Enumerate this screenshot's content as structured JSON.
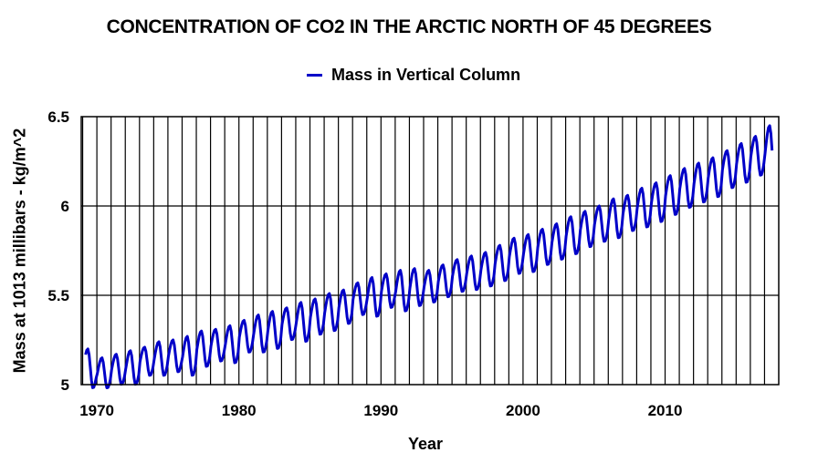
{
  "chart_data": {
    "type": "line",
    "title": "CONCENTRATION OF CO2 IN THE ARCTIC NORTH OF 45 DEGREES",
    "xlabel": "Year",
    "ylabel": "Mass at 1013 millibars - kg/m^2",
    "xlim": [
      1968.9,
      2018.0
    ],
    "ylim": [
      5,
      6.5
    ],
    "x_ticks": [
      1970,
      1980,
      1990,
      2000,
      2010
    ],
    "x_tick_labels": [
      "1970",
      "1980",
      "1990",
      "2000",
      "2010"
    ],
    "y_ticks": [
      5,
      5.5,
      6,
      6.5
    ],
    "y_tick_labels": [
      "5",
      "5.5",
      "6",
      "6.5"
    ],
    "grid": {
      "vertical": "yearly",
      "horizontal": "major"
    },
    "legend": {
      "placement": "top-center",
      "entries": [
        "Mass in Vertical Column"
      ]
    },
    "series": [
      {
        "name": "Mass in Vertical Column",
        "color": "#0000c8",
        "sampling": "monthly, seasonal cycle with spring peak and late-summer trough",
        "start": 1969.2,
        "end": 2017.6,
        "annual": [
          {
            "year": 1969,
            "peak": 5.2,
            "trough": 4.98
          },
          {
            "year": 1970,
            "peak": 5.15,
            "trough": 4.98
          },
          {
            "year": 1971,
            "peak": 5.17,
            "trough": 5.0
          },
          {
            "year": 1972,
            "peak": 5.19,
            "trough": 5.0
          },
          {
            "year": 1973,
            "peak": 5.21,
            "trough": 5.05
          },
          {
            "year": 1974,
            "peak": 5.24,
            "trough": 5.05
          },
          {
            "year": 1975,
            "peak": 5.25,
            "trough": 5.07
          },
          {
            "year": 1976,
            "peak": 5.27,
            "trough": 5.05
          },
          {
            "year": 1977,
            "peak": 5.3,
            "trough": 5.1
          },
          {
            "year": 1978,
            "peak": 5.31,
            "trough": 5.13
          },
          {
            "year": 1979,
            "peak": 5.33,
            "trough": 5.12
          },
          {
            "year": 1980,
            "peak": 5.36,
            "trough": 5.18
          },
          {
            "year": 1981,
            "peak": 5.39,
            "trough": 5.18
          },
          {
            "year": 1982,
            "peak": 5.41,
            "trough": 5.2
          },
          {
            "year": 1983,
            "peak": 5.43,
            "trough": 5.25
          },
          {
            "year": 1984,
            "peak": 5.46,
            "trough": 5.24
          },
          {
            "year": 1985,
            "peak": 5.48,
            "trough": 5.28
          },
          {
            "year": 1986,
            "peak": 5.51,
            "trough": 5.3
          },
          {
            "year": 1987,
            "peak": 5.53,
            "trough": 5.34
          },
          {
            "year": 1988,
            "peak": 5.57,
            "trough": 5.39
          },
          {
            "year": 1989,
            "peak": 5.6,
            "trough": 5.38
          },
          {
            "year": 1990,
            "peak": 5.62,
            "trough": 5.43
          },
          {
            "year": 1991,
            "peak": 5.64,
            "trough": 5.41
          },
          {
            "year": 1992,
            "peak": 5.65,
            "trough": 5.44
          },
          {
            "year": 1993,
            "peak": 5.64,
            "trough": 5.46
          },
          {
            "year": 1994,
            "peak": 5.67,
            "trough": 5.49
          },
          {
            "year": 1995,
            "peak": 5.7,
            "trough": 5.52
          },
          {
            "year": 1996,
            "peak": 5.72,
            "trough": 5.53
          },
          {
            "year": 1997,
            "peak": 5.74,
            "trough": 5.55
          },
          {
            "year": 1998,
            "peak": 5.78,
            "trough": 5.58
          },
          {
            "year": 1999,
            "peak": 5.82,
            "trough": 5.62
          },
          {
            "year": 2000,
            "peak": 5.84,
            "trough": 5.63
          },
          {
            "year": 2001,
            "peak": 5.87,
            "trough": 5.67
          },
          {
            "year": 2002,
            "peak": 5.9,
            "trough": 5.7
          },
          {
            "year": 2003,
            "peak": 5.94,
            "trough": 5.73
          },
          {
            "year": 2004,
            "peak": 5.97,
            "trough": 5.77
          },
          {
            "year": 2005,
            "peak": 6.0,
            "trough": 5.8
          },
          {
            "year": 2006,
            "peak": 6.04,
            "trough": 5.82
          },
          {
            "year": 2007,
            "peak": 6.06,
            "trough": 5.86
          },
          {
            "year": 2008,
            "peak": 6.1,
            "trough": 5.88
          },
          {
            "year": 2009,
            "peak": 6.13,
            "trough": 5.91
          },
          {
            "year": 2010,
            "peak": 6.17,
            "trough": 5.95
          },
          {
            "year": 2011,
            "peak": 6.21,
            "trough": 5.99
          },
          {
            "year": 2012,
            "peak": 6.24,
            "trough": 6.02
          },
          {
            "year": 2013,
            "peak": 6.27,
            "trough": 6.05
          },
          {
            "year": 2014,
            "peak": 6.31,
            "trough": 6.1
          },
          {
            "year": 2015,
            "peak": 6.35,
            "trough": 6.13
          },
          {
            "year": 2016,
            "peak": 6.39,
            "trough": 6.17
          },
          {
            "year": 2017,
            "peak": 6.45,
            "trough": 6.15
          }
        ],
        "end_value": 6.15
      }
    ]
  }
}
